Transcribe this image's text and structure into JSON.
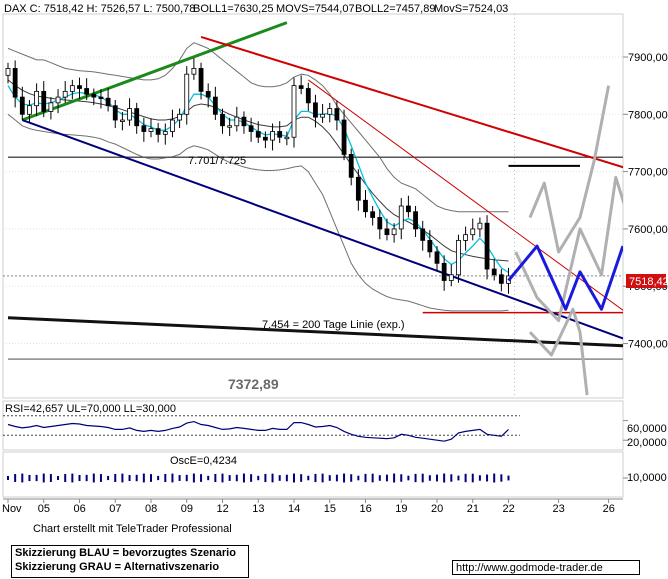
{
  "header": {
    "main": "DAX C: 7518,42 H: 7526,57 L: 7500,78",
    "boll1": "BOLL1=7630,25",
    "movs": "MOVS=7544,07",
    "boll2": "BOLL2=7457,89",
    "movs2": "MovS=7524,03"
  },
  "colors": {
    "candle": "#000000",
    "bollinger": "#707070",
    "movs_cyan": "#00c0e0",
    "green_trend": "#1a8a1a",
    "red_trend": "#d00000",
    "navy_trend": "#00007a",
    "scenario_blue": "#1a1adf",
    "scenario_grey": "#b0b0b0",
    "price_tag": "#d01010"
  },
  "annotations": {
    "level_7701": "7.701/7.725",
    "level_7454": "7.454 = 200 Tage Linie (exp.)",
    "level_7372": "7372,89",
    "price_tag": "7518,42"
  },
  "rsi": {
    "label": "RSI=42,657 UL=70,000 LL=30,000",
    "ticks": [
      "60,0000",
      "20,0000"
    ]
  },
  "osc": {
    "label": "OscE=0,4234",
    "tick": "10,0000"
  },
  "footer": {
    "credit": "Chart erstellt mit TeleTrader Professional",
    "legend_blue": "Skizzierung BLAU = bevorzugtes Szenario",
    "legend_grey": "Skizzierung GRAU = Alternativszenario",
    "url": "http://www.godmode-trader.de"
  },
  "chart_data": {
    "type": "line",
    "title": "DAX C: 7518,42 H: 7526,57 L: 7500,78",
    "y_ticks": [
      7900,
      7800,
      7700,
      7600,
      7500,
      7400
    ],
    "y_tick_labels": [
      "7900,00",
      "7800,00",
      "7700,00",
      "7600,00",
      "7500,00",
      "7400,00"
    ],
    "ylim": [
      7305,
      7975
    ],
    "x_labels": [
      "Nov",
      "05",
      "06",
      "07",
      "08",
      "09",
      "12",
      "13",
      "14",
      "15",
      "16",
      "19",
      "20",
      "21",
      "22",
      "23",
      "26"
    ],
    "x_label_index": [
      0,
      5,
      10,
      15,
      20,
      25,
      30,
      35,
      40,
      45,
      50,
      55,
      60,
      65,
      70,
      77,
      84
    ],
    "n_bars": 71,
    "closes": [
      7880,
      7830,
      7800,
      7815,
      7840,
      7805,
      7820,
      7830,
      7840,
      7850,
      7845,
      7835,
      7830,
      7828,
      7815,
      7790,
      7790,
      7810,
      7780,
      7770,
      7775,
      7765,
      7770,
      7790,
      7800,
      7870,
      7880,
      7840,
      7830,
      7800,
      7780,
      7780,
      7795,
      7780,
      7770,
      7760,
      7755,
      7770,
      7760,
      7760,
      7850,
      7845,
      7820,
      7795,
      7800,
      7810,
      7790,
      7730,
      7690,
      7650,
      7630,
      7620,
      7600,
      7590,
      7600,
      7640,
      7630,
      7600,
      7580,
      7560,
      7540,
      7510,
      7520,
      7580,
      7590,
      7600,
      7610,
      7530,
      7520,
      7505,
      7518
    ],
    "boll_upper": [
      7915,
      7910,
      7905,
      7900,
      7895,
      7895,
      7890,
      7885,
      7880,
      7878,
      7876,
      7875,
      7874,
      7872,
      7870,
      7868,
      7866,
      7864,
      7862,
      7860,
      7860,
      7862,
      7868,
      7880,
      7895,
      7915,
      7925,
      7920,
      7915,
      7905,
      7895,
      7885,
      7875,
      7865,
      7855,
      7850,
      7848,
      7848,
      7850,
      7855,
      7865,
      7870,
      7868,
      7860,
      7850,
      7835,
      7815,
      7800,
      7785,
      7770,
      7755,
      7740,
      7725,
      7705,
      7690,
      7680,
      7675,
      7670,
      7660,
      7650,
      7640,
      7635,
      7632,
      7630,
      7630,
      7630,
      7630,
      7630,
      7630,
      7630,
      7630
    ],
    "boll_lower": [
      7800,
      7790,
      7780,
      7775,
      7772,
      7770,
      7768,
      7766,
      7765,
      7764,
      7763,
      7762,
      7760,
      7757,
      7752,
      7748,
      7742,
      7736,
      7730,
      7725,
      7722,
      7722,
      7724,
      7726,
      7730,
      7740,
      7745,
      7742,
      7738,
      7730,
      7722,
      7716,
      7712,
      7708,
      7705,
      7703,
      7702,
      7702,
      7703,
      7705,
      7708,
      7710,
      7700,
      7680,
      7660,
      7630,
      7600,
      7570,
      7540,
      7520,
      7505,
      7495,
      7488,
      7482,
      7478,
      7476,
      7474,
      7470,
      7466,
      7462,
      7460,
      7458,
      7457,
      7457,
      7457,
      7457,
      7457,
      7457,
      7457,
      7457,
      7458
    ],
    "movs": [
      7860,
      7850,
      7842,
      7836,
      7832,
      7830,
      7828,
      7826,
      7825,
      7824,
      7823,
      7822,
      7820,
      7818,
      7815,
      7812,
      7808,
      7804,
      7800,
      7796,
      7792,
      7790,
      7790,
      7792,
      7796,
      7805,
      7815,
      7818,
      7816,
      7812,
      7806,
      7800,
      7795,
      7790,
      7786,
      7782,
      7780,
      7778,
      7778,
      7780,
      7790,
      7795,
      7795,
      7788,
      7778,
      7765,
      7748,
      7730,
      7712,
      7695,
      7678,
      7662,
      7648,
      7635,
      7625,
      7618,
      7612,
      7605,
      7598,
      7590,
      7580,
      7570,
      7562,
      7558,
      7555,
      7552,
      7550,
      7548,
      7546,
      7545,
      7544
    ],
    "movs_cyan": [
      7850,
      7830,
      7818,
      7816,
      7820,
      7818,
      7820,
      7825,
      7830,
      7836,
      7838,
      7836,
      7834,
      7830,
      7822,
      7808,
      7800,
      7800,
      7792,
      7782,
      7778,
      7772,
      7772,
      7780,
      7792,
      7815,
      7835,
      7835,
      7830,
      7815,
      7800,
      7790,
      7790,
      7786,
      7778,
      7770,
      7764,
      7766,
      7764,
      7762,
      7790,
      7805,
      7805,
      7800,
      7800,
      7802,
      7796,
      7775,
      7745,
      7712,
      7680,
      7655,
      7632,
      7612,
      7605,
      7612,
      7618,
      7612,
      7598,
      7582,
      7565,
      7548,
      7538,
      7545,
      7558,
      7570,
      7584,
      7570,
      7550,
      7532,
      7524
    ],
    "series": [
      {
        "name": "BOLL1",
        "value": 7630.25
      },
      {
        "name": "MOVS",
        "value": 7544.07
      },
      {
        "name": "BOLL2",
        "value": 7457.89
      },
      {
        "name": "MovS",
        "value": 7524.03
      }
    ],
    "trendlines": {
      "green": [
        [
          2,
          7790
        ],
        [
          39,
          7960
        ]
      ],
      "red_upper": [
        [
          27,
          7935
        ],
        [
          88,
          7700
        ]
      ],
      "red_thin": [
        [
          42,
          7860
        ],
        [
          88,
          7440
        ]
      ],
      "navy": [
        [
          2,
          7790
        ],
        [
          88,
          7400
        ]
      ],
      "black": [
        [
          0,
          7445
        ],
        [
          88,
          7395
        ]
      ]
    },
    "levels": [
      {
        "label": "7.701/7.725",
        "value": 7725,
        "from": 0,
        "to": 88,
        "color": "#555555"
      },
      {
        "label": "",
        "value": 7710,
        "from": 70,
        "to": 80,
        "color": "#000000"
      },
      {
        "label": "7.454 = 200 Tage Linie (exp.)",
        "value": 7454,
        "from": 58,
        "to": 87,
        "color": "#d00000"
      },
      {
        "label": "7372,89",
        "value": 7372.89,
        "from": 0,
        "to": 88,
        "color": "#888888"
      }
    ],
    "scenario_blue": [
      [
        70,
        7510
      ],
      [
        74,
        7570
      ],
      [
        78,
        7460
      ],
      [
        80,
        7525
      ],
      [
        83,
        7460
      ],
      [
        86,
        7570
      ]
    ],
    "scenario_grey_a": [
      [
        71,
        7560
      ],
      [
        74,
        7480
      ],
      [
        77,
        7440
      ],
      [
        80,
        7600
      ],
      [
        83,
        7520
      ],
      [
        85,
        7690
      ],
      [
        88,
        7570
      ]
    ],
    "scenario_grey_b": [
      [
        73,
        7620
      ],
      [
        75,
        7680
      ],
      [
        77,
        7560
      ],
      [
        80,
        7620
      ],
      [
        82,
        7720
      ],
      [
        84,
        7850
      ]
    ],
    "scenario_grey_c": [
      [
        73,
        7420
      ],
      [
        76,
        7380
      ],
      [
        79,
        7460
      ],
      [
        80,
        7420
      ],
      [
        81,
        7310
      ]
    ],
    "rsi_values": [
      52,
      48,
      45,
      47,
      50,
      46,
      48,
      50,
      52,
      54,
      53,
      50,
      49,
      48,
      46,
      42,
      42,
      45,
      40,
      38,
      40,
      38,
      40,
      44,
      47,
      55,
      58,
      52,
      50,
      46,
      42,
      43,
      46,
      44,
      42,
      40,
      40,
      44,
      42,
      42,
      56,
      56,
      52,
      47,
      48,
      50,
      46,
      38,
      32,
      28,
      26,
      25,
      24,
      23,
      25,
      32,
      30,
      26,
      24,
      22,
      20,
      18,
      22,
      35,
      38,
      40,
      42,
      32,
      30,
      28,
      42
    ]
  }
}
